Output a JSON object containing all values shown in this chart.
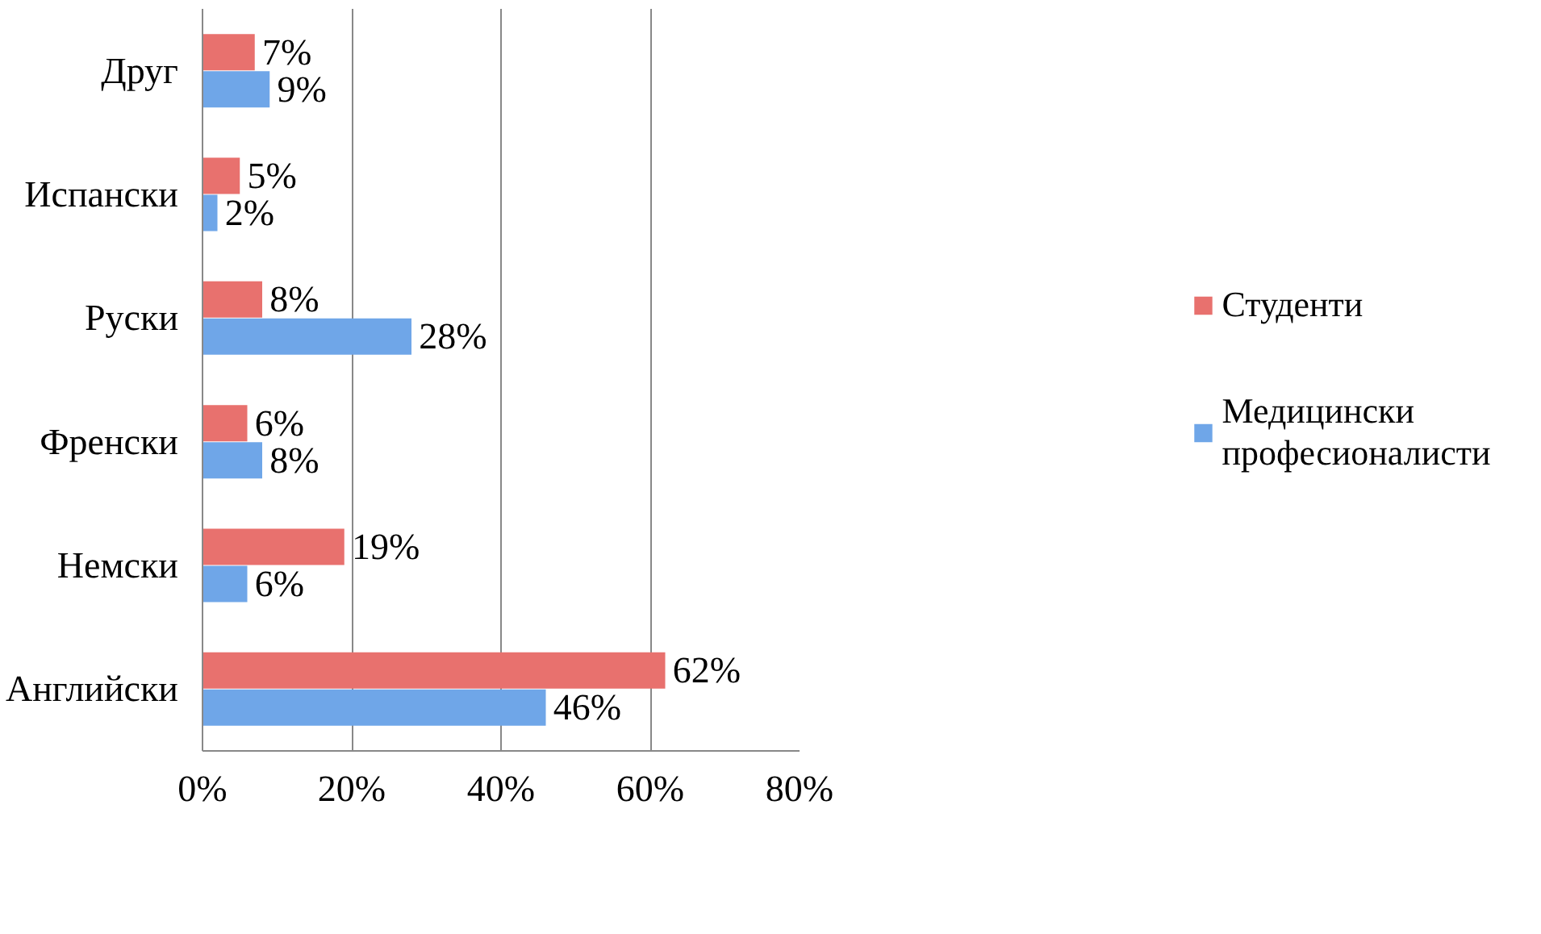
{
  "chart_data": {
    "type": "bar",
    "orientation": "horizontal",
    "categories": [
      "Друг",
      "Испански",
      "Руски",
      "Френски",
      "Немски",
      "Английски"
    ],
    "series": [
      {
        "name": "Студенти",
        "color": "#e8716e",
        "values": [
          7,
          5,
          8,
          6,
          19,
          62
        ],
        "value_labels": [
          "7%",
          "5%",
          "8%",
          "6%",
          "19%",
          "62%"
        ]
      },
      {
        "name": "Медицински професионалисти",
        "color": "#6fa6e8",
        "values": [
          9,
          2,
          28,
          8,
          6,
          46
        ],
        "value_labels": [
          "9%",
          "2%",
          "28%",
          "8%",
          "6%",
          "46%"
        ]
      }
    ],
    "xlim": [
      0,
      80
    ],
    "xticks": [
      {
        "value": 0,
        "label": "0%"
      },
      {
        "value": 20,
        "label": "20%"
      },
      {
        "value": 40,
        "label": "40%"
      },
      {
        "value": 60,
        "label": "60%"
      },
      {
        "value": 80,
        "label": "80%"
      }
    ],
    "grid": "x",
    "legend": "right"
  }
}
